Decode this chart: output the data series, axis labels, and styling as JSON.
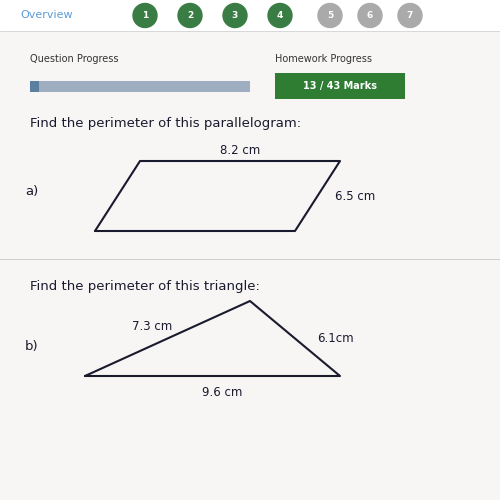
{
  "bg_color": "#f0eeec",
  "nav_bg": "#ffffff",
  "nav_text": "Overview",
  "nav_text_color": "#5b9bd5",
  "nav_numbers": [
    "1",
    "2",
    "3",
    "4",
    "5",
    "6",
    "7"
  ],
  "nav_colors_active": [
    "#3a7d44",
    "#3a7d44",
    "#3a7d44",
    "#3a7d44"
  ],
  "nav_colors_inactive": [
    "#aaaaaa",
    "#aaaaaa",
    "#aaaaaa"
  ],
  "qp_label": "Question Progress",
  "hp_label": "Homework Progress",
  "hp_value": "13 / 43 Marks",
  "hp_bg": "#2e7d32",
  "progress_bar_color": "#9eaec0",
  "title_para": "Find the perimeter of this parallelogram:",
  "label_a": "a)",
  "para_top_label": "8.2 cm",
  "para_side_label": "6.5 cm",
  "title_tri": "Find the perimeter of this triangle:",
  "label_b": "b)",
  "tri_left_label": "7.3 cm",
  "tri_right_label": "6.1cm",
  "tri_bottom_label": "9.6 cm",
  "text_color": "#1a1a2e",
  "shape_line_color": "#1a1a2e",
  "shape_linewidth": 1.5,
  "title_fontsize": 9.5,
  "label_fontsize": 9.5,
  "dim_fontsize": 8.5
}
